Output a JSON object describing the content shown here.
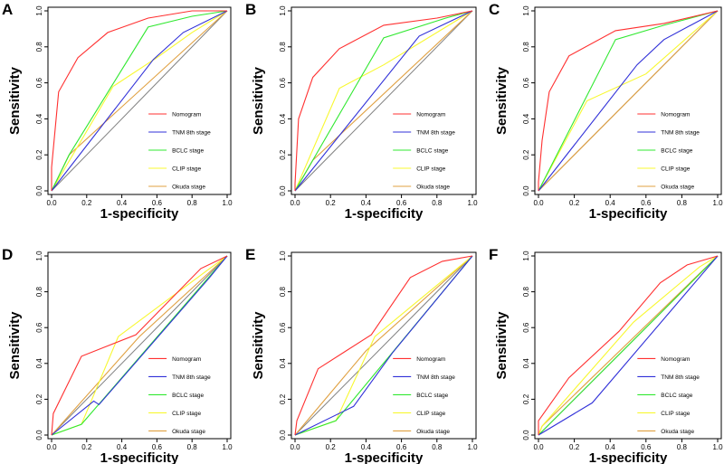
{
  "figure": {
    "xlabel": "1-specificity",
    "ylabel": "Sensitivity",
    "x_ticks": [
      "0.0",
      "0.2",
      "0.4",
      "0.6",
      "0.8",
      "1.0"
    ],
    "y_ticks": [
      "0.0",
      "0.2",
      "0.4",
      "0.6",
      "0.8",
      "1.0"
    ]
  },
  "series_colors": {
    "Nomogram": "#ff3030",
    "TNM 8th stage": "#3030d8",
    "BCLC stage": "#30e830",
    "CLIP stage": "#f8f830",
    "Okuda stage": "#e0a040",
    "reference": "#808080"
  },
  "chart_data": [
    {
      "panel": "A",
      "type": "line",
      "xlabel": "1-specificity",
      "ylabel": "Sensitivity",
      "xlim": [
        0,
        1
      ],
      "ylim": [
        0,
        1
      ],
      "legend_position": "bottom-right",
      "series": [
        {
          "name": "Nomogram",
          "x": [
            0,
            0.0,
            0.04,
            0.15,
            0.32,
            0.55,
            0.8,
            1.0
          ],
          "y": [
            0,
            0.13,
            0.55,
            0.74,
            0.88,
            0.96,
            1.0,
            1.0
          ]
        },
        {
          "name": "TNM 8th stage",
          "x": [
            0,
            0.58,
            0.75,
            1.0
          ],
          "y": [
            0,
            0.73,
            0.88,
            1.0
          ]
        },
        {
          "name": "BCLC stage",
          "x": [
            0,
            0.1,
            0.55,
            0.8,
            1.0
          ],
          "y": [
            0,
            0.2,
            0.91,
            0.97,
            1.0
          ]
        },
        {
          "name": "CLIP stage",
          "x": [
            0,
            0.35,
            0.6,
            0.8,
            1.0
          ],
          "y": [
            0,
            0.58,
            0.74,
            0.88,
            1.0
          ]
        },
        {
          "name": "Okuda stage",
          "x": [
            0,
            0.1,
            1.0
          ],
          "y": [
            0,
            0.2,
            1.0
          ]
        }
      ]
    },
    {
      "panel": "B",
      "type": "line",
      "xlabel": "1-specificity",
      "ylabel": "Sensitivity",
      "xlim": [
        0,
        1
      ],
      "ylim": [
        0,
        1
      ],
      "legend_position": "bottom-right",
      "series": [
        {
          "name": "Nomogram",
          "x": [
            0,
            0.0,
            0.02,
            0.1,
            0.25,
            0.5,
            0.8,
            1.0
          ],
          "y": [
            0,
            0.04,
            0.4,
            0.63,
            0.79,
            0.92,
            0.96,
            1.0
          ]
        },
        {
          "name": "TNM 8th stage",
          "x": [
            0,
            0.7,
            1.0
          ],
          "y": [
            0,
            0.86,
            1.0
          ]
        },
        {
          "name": "BCLC stage",
          "x": [
            0,
            0.5,
            0.85,
            1.0
          ],
          "y": [
            0,
            0.85,
            0.96,
            1.0
          ]
        },
        {
          "name": "CLIP stage",
          "x": [
            0,
            0.25,
            0.5,
            1.0
          ],
          "y": [
            0,
            0.57,
            0.7,
            1.0
          ]
        },
        {
          "name": "Okuda stage",
          "x": [
            0,
            0.1,
            1.0
          ],
          "y": [
            0,
            0.17,
            1.0
          ]
        }
      ]
    },
    {
      "panel": "C",
      "type": "line",
      "xlabel": "1-specificity",
      "ylabel": "Sensitivity",
      "xlim": [
        0,
        1
      ],
      "ylim": [
        0,
        1
      ],
      "legend_position": "bottom-right",
      "series": [
        {
          "name": "Nomogram",
          "x": [
            0,
            0.0,
            0.02,
            0.06,
            0.17,
            0.43,
            0.7,
            1.0
          ],
          "y": [
            0,
            0.05,
            0.28,
            0.55,
            0.75,
            0.89,
            0.93,
            1.0
          ]
        },
        {
          "name": "TNM 8th stage",
          "x": [
            0,
            0.55,
            0.7,
            1.0
          ],
          "y": [
            0,
            0.7,
            0.84,
            1.0
          ]
        },
        {
          "name": "BCLC stage",
          "x": [
            0,
            0.43,
            0.7,
            1.0
          ],
          "y": [
            0,
            0.84,
            0.92,
            1.0
          ]
        },
        {
          "name": "CLIP stage",
          "x": [
            0,
            0.27,
            0.6,
            1.0
          ],
          "y": [
            0,
            0.5,
            0.65,
            1.0
          ]
        },
        {
          "name": "Okuda stage",
          "x": [
            0,
            1.0
          ],
          "y": [
            0,
            1.0
          ]
        }
      ]
    },
    {
      "panel": "D",
      "type": "line",
      "xlabel": "1-specificity",
      "ylabel": "Sensitivity",
      "xlim": [
        0,
        1
      ],
      "ylim": [
        0,
        1
      ],
      "legend_position": "bottom-right",
      "series": [
        {
          "name": "Nomogram",
          "x": [
            0,
            0.0,
            0.01,
            0.17,
            0.48,
            0.85,
            1.0
          ],
          "y": [
            0,
            0.0,
            0.12,
            0.44,
            0.56,
            0.93,
            1.0
          ]
        },
        {
          "name": "TNM 8th stage",
          "x": [
            0,
            0.24,
            0.27,
            0.9,
            1.0
          ],
          "y": [
            0,
            0.19,
            0.17,
            0.88,
            1.0
          ]
        },
        {
          "name": "BCLC stage",
          "x": [
            0,
            0.17,
            1.0
          ],
          "y": [
            0,
            0.06,
            1.0
          ]
        },
        {
          "name": "CLIP stage",
          "x": [
            0,
            0.17,
            0.38,
            0.9,
            1.0
          ],
          "y": [
            0,
            0.06,
            0.55,
            0.93,
            1.0
          ]
        },
        {
          "name": "Okuda stage",
          "x": [
            0,
            0.5,
            1.0
          ],
          "y": [
            0,
            0.55,
            1.0
          ]
        }
      ]
    },
    {
      "panel": "E",
      "type": "line",
      "xlabel": "1-specificity",
      "ylabel": "Sensitivity",
      "xlim": [
        0,
        1
      ],
      "ylim": [
        0,
        1
      ],
      "legend_position": "bottom-right",
      "series": [
        {
          "name": "Nomogram",
          "x": [
            0,
            0.0,
            0.01,
            0.13,
            0.43,
            0.65,
            0.83,
            1.0
          ],
          "y": [
            0,
            0.0,
            0.08,
            0.37,
            0.56,
            0.88,
            0.97,
            1.0
          ]
        },
        {
          "name": "TNM 8th stage",
          "x": [
            0,
            0.33,
            0.55,
            1.0
          ],
          "y": [
            0,
            0.16,
            0.46,
            1.0
          ]
        },
        {
          "name": "BCLC stage",
          "x": [
            0,
            0.23,
            1.0
          ],
          "y": [
            0,
            0.08,
            1.0
          ]
        },
        {
          "name": "CLIP stage",
          "x": [
            0,
            0.23,
            0.45,
            1.0
          ],
          "y": [
            0,
            0.08,
            0.55,
            1.0
          ]
        },
        {
          "name": "Okuda stage",
          "x": [
            0,
            0.4,
            1.0
          ],
          "y": [
            0,
            0.47,
            1.0
          ]
        }
      ]
    },
    {
      "panel": "F",
      "type": "line",
      "xlabel": "1-specificity",
      "ylabel": "Sensitivity",
      "xlim": [
        0,
        1
      ],
      "ylim": [
        0,
        1
      ],
      "legend_position": "bottom-right",
      "series": [
        {
          "name": "Nomogram",
          "x": [
            0,
            0.0,
            0.17,
            0.45,
            0.68,
            0.83,
            1.0
          ],
          "y": [
            0,
            0.08,
            0.32,
            0.58,
            0.85,
            0.95,
            1.0
          ]
        },
        {
          "name": "TNM 8th stage",
          "x": [
            0,
            0.3,
            1.0
          ],
          "y": [
            0,
            0.18,
            1.0
          ]
        },
        {
          "name": "BCLC stage",
          "x": [
            0,
            1.0
          ],
          "y": [
            0,
            1.0
          ]
        },
        {
          "name": "CLIP stage",
          "x": [
            0,
            0.02,
            0.53,
            0.9,
            1.0
          ],
          "y": [
            0,
            0.05,
            0.63,
            0.94,
            1.0
          ]
        },
        {
          "name": "Okuda stage",
          "x": [
            0,
            0.02,
            1.0
          ],
          "y": [
            0,
            0.05,
            1.0
          ]
        }
      ]
    }
  ]
}
